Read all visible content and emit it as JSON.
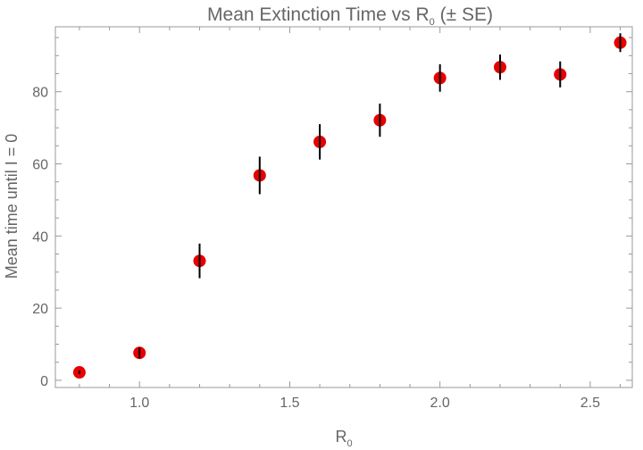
{
  "chart_data": {
    "type": "scatter",
    "title_main": "Mean Extinction Time vs R",
    "title_sub": "0",
    "title_tail": " (± SE)",
    "xlabel_main": "R",
    "xlabel_sub": "0",
    "ylabel": "Mean time until I = 0",
    "xlim": [
      0.72,
      2.64
    ],
    "ylim": [
      -2,
      98
    ],
    "xticks": [
      1.0,
      1.5,
      2.0,
      2.5
    ],
    "xtick_labels": [
      "1.0",
      "1.5",
      "2.0",
      "2.5"
    ],
    "yticks": [
      0,
      20,
      40,
      60,
      80
    ],
    "ytick_labels": [
      "0",
      "20",
      "40",
      "60",
      "80"
    ],
    "grid": false,
    "marker_color": "#e60000",
    "errorbar_color": "#000000",
    "frame_color": "#999999",
    "points": [
      {
        "x": 0.8,
        "y": 2.2,
        "se": 0.5
      },
      {
        "x": 1.0,
        "y": 7.6,
        "se": 1.5
      },
      {
        "x": 1.2,
        "y": 33.1,
        "se": 4.8
      },
      {
        "x": 1.4,
        "y": 56.8,
        "se": 5.2
      },
      {
        "x": 1.6,
        "y": 66.1,
        "se": 4.9
      },
      {
        "x": 1.8,
        "y": 72.1,
        "se": 4.6
      },
      {
        "x": 2.0,
        "y": 83.8,
        "se": 3.8
      },
      {
        "x": 2.2,
        "y": 86.8,
        "se": 3.5
      },
      {
        "x": 2.4,
        "y": 84.8,
        "se": 3.6
      },
      {
        "x": 2.6,
        "y": 93.6,
        "se": 2.6
      }
    ]
  }
}
